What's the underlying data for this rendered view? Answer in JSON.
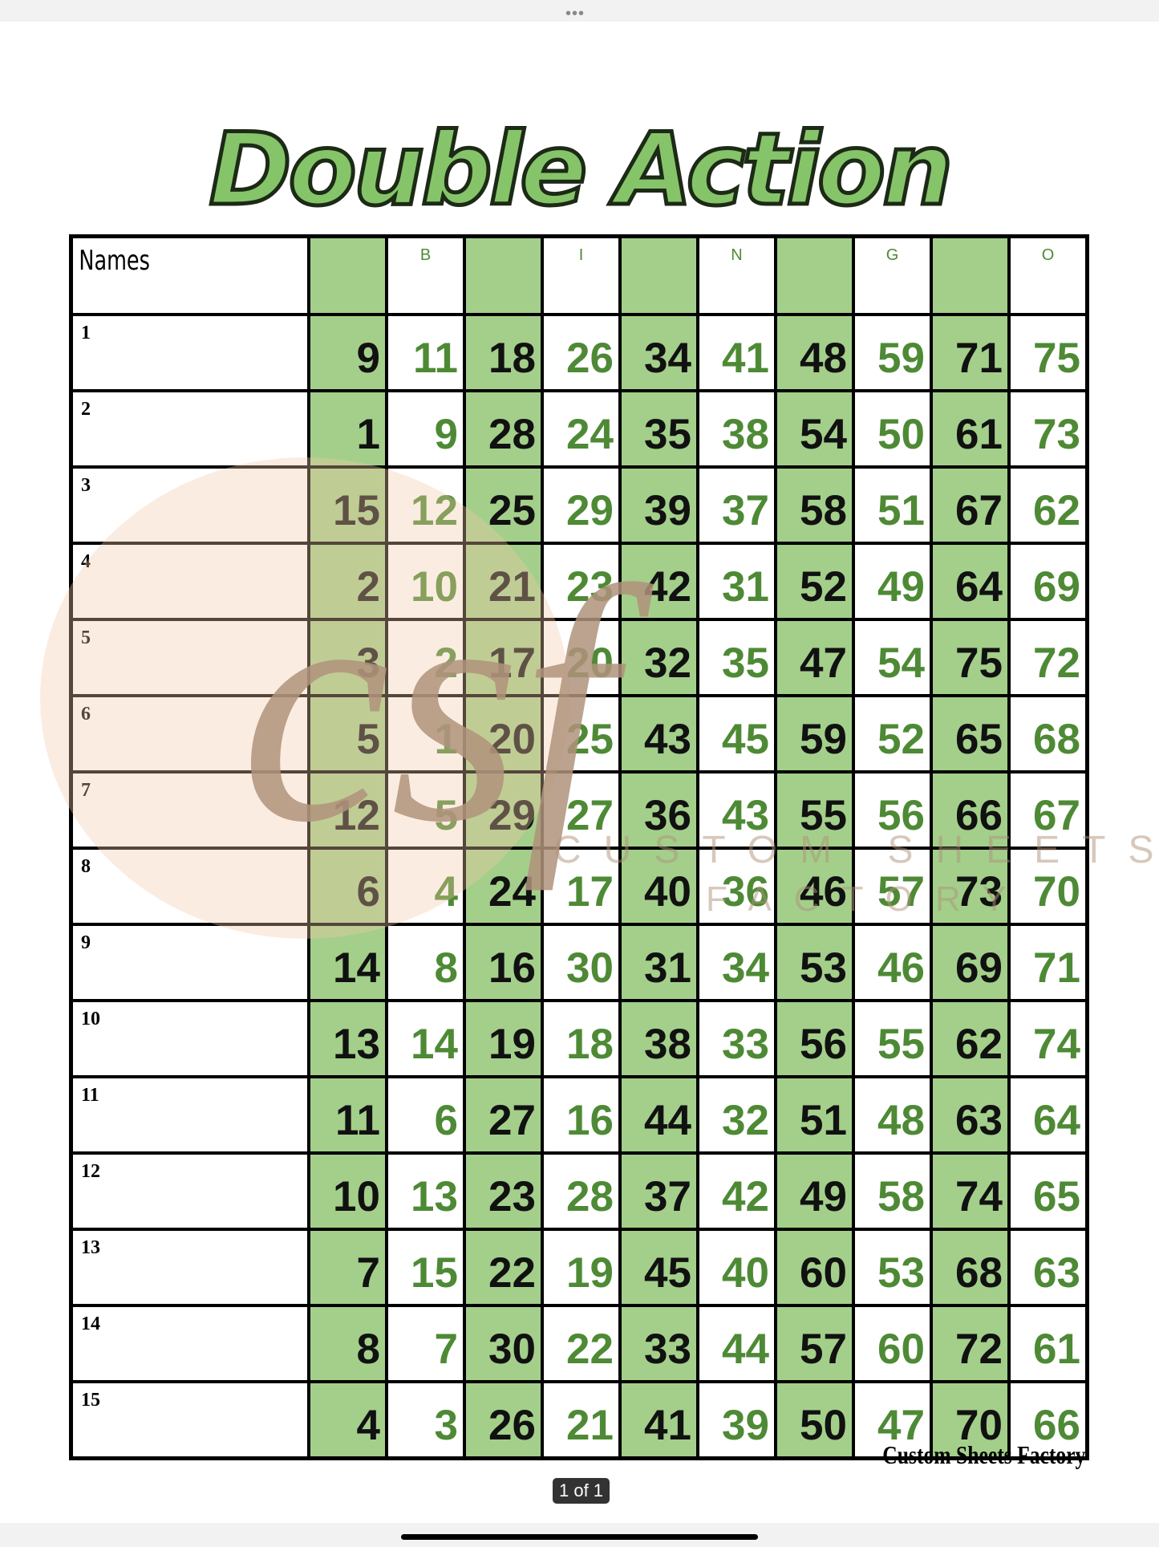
{
  "title": "Double Action",
  "header": {
    "names": "Names",
    "letters": [
      "B",
      "I",
      "N",
      "G",
      "O"
    ]
  },
  "rows": [
    {
      "label": "1",
      "numbers": [
        9,
        11,
        18,
        26,
        34,
        41,
        48,
        59,
        71,
        75
      ]
    },
    {
      "label": "2",
      "numbers": [
        1,
        9,
        28,
        24,
        35,
        38,
        54,
        50,
        61,
        73
      ]
    },
    {
      "label": "3",
      "numbers": [
        15,
        12,
        25,
        29,
        39,
        37,
        58,
        51,
        67,
        62
      ]
    },
    {
      "label": "4",
      "numbers": [
        2,
        10,
        21,
        23,
        42,
        31,
        52,
        49,
        64,
        69
      ]
    },
    {
      "label": "5",
      "numbers": [
        3,
        2,
        17,
        20,
        32,
        35,
        47,
        54,
        75,
        72
      ]
    },
    {
      "label": "6",
      "numbers": [
        5,
        1,
        20,
        25,
        43,
        45,
        59,
        52,
        65,
        68
      ]
    },
    {
      "label": "7",
      "numbers": [
        12,
        5,
        29,
        27,
        36,
        43,
        55,
        56,
        66,
        67
      ]
    },
    {
      "label": "8",
      "numbers": [
        6,
        4,
        24,
        17,
        40,
        36,
        46,
        57,
        73,
        70
      ]
    },
    {
      "label": "9",
      "numbers": [
        14,
        8,
        16,
        30,
        31,
        34,
        53,
        46,
        69,
        71
      ]
    },
    {
      "label": "10",
      "numbers": [
        13,
        14,
        19,
        18,
        38,
        33,
        56,
        55,
        62,
        74
      ]
    },
    {
      "label": "11",
      "numbers": [
        11,
        6,
        27,
        16,
        44,
        32,
        51,
        48,
        63,
        64
      ]
    },
    {
      "label": "12",
      "numbers": [
        10,
        13,
        23,
        28,
        37,
        42,
        49,
        58,
        74,
        65
      ]
    },
    {
      "label": "13",
      "numbers": [
        7,
        15,
        22,
        19,
        45,
        40,
        60,
        53,
        68,
        63
      ]
    },
    {
      "label": "14",
      "numbers": [
        8,
        7,
        30,
        22,
        33,
        44,
        57,
        60,
        72,
        61
      ]
    },
    {
      "label": "15",
      "numbers": [
        4,
        3,
        26,
        21,
        41,
        39,
        50,
        47,
        70,
        66
      ]
    }
  ],
  "watermark": {
    "monogram": "csf",
    "line1": "CUSTOM SHEETS",
    "line2": "FACTORY"
  },
  "footer": "Custom Sheets Factory",
  "page_indicator": "1 of 1"
}
